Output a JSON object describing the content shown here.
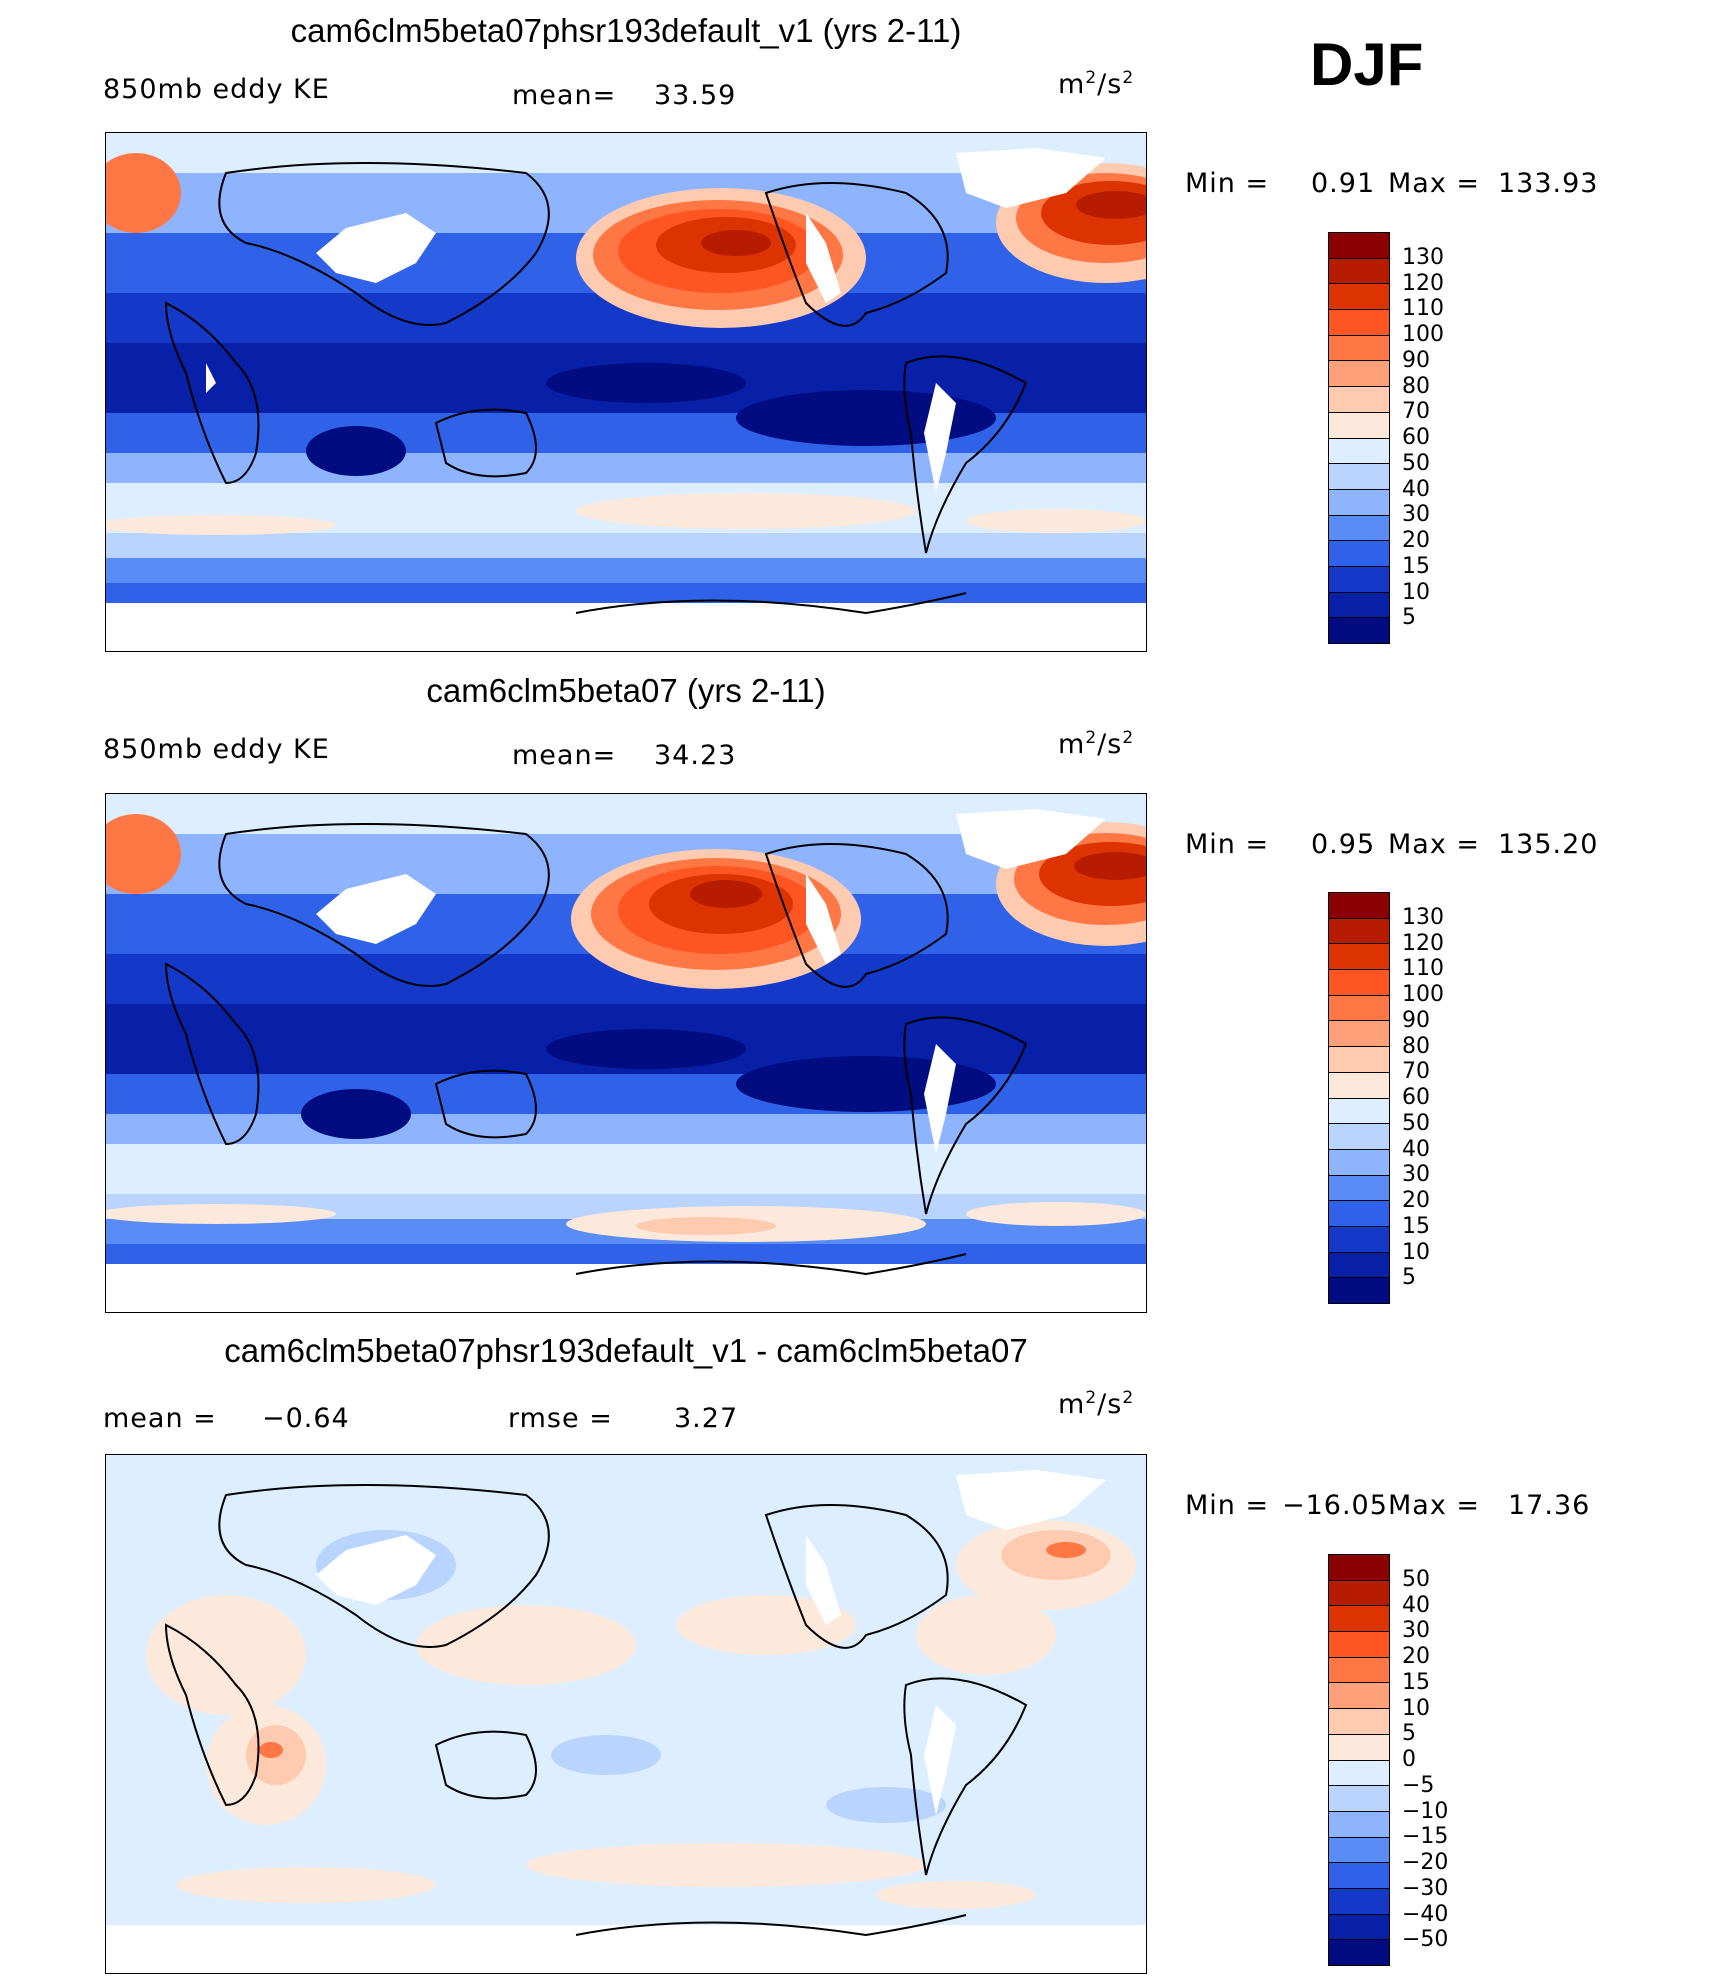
{
  "season": "DJF",
  "variable": "850mb eddy KE",
  "units": {
    "base": "m",
    "exp1": "2",
    "mid": "/s",
    "exp2": "2"
  },
  "panels": [
    {
      "title": "cam6clm5beta07phsr193default_v1 (yrs 2-11)",
      "left_label": "850mb  eddy  KE",
      "stat_label": "mean=",
      "stat_value": "33.59",
      "min_label": "Min  =",
      "min_value": "0.91",
      "max_label": "Max  =",
      "max_value": "133.93"
    },
    {
      "title": "cam6clm5beta07 (yrs 2-11)",
      "left_label": "850mb  eddy  KE",
      "stat_label": "mean=",
      "stat_value": "34.23",
      "min_label": "Min  =",
      "min_value": "0.95",
      "max_label": "Max  =",
      "max_value": "135.20"
    },
    {
      "title": "cam6clm5beta07phsr193default_v1 - cam6clm5beta07",
      "left_label": "mean  =",
      "left_value": "−0.64",
      "stat_label": "rmse  =",
      "stat_value": "3.27",
      "min_label": "Min  =",
      "min_value": "−16.05",
      "max_label": "Max  =",
      "max_value": "17.36"
    }
  ],
  "colorbar_abs": {
    "labels": [
      "130",
      "120",
      "110",
      "100",
      "90",
      "80",
      "70",
      "60",
      "50",
      "40",
      "30",
      "20",
      "15",
      "10",
      "5"
    ],
    "colors": [
      "#8b0000",
      "#b71c00",
      "#dd3300",
      "#ff5522",
      "#ff7744",
      "#ffa07a",
      "#ffcbb0",
      "#fde9dc",
      "#dceeff",
      "#b8d4ff",
      "#8fb4ff",
      "#5a8cf5",
      "#2f62e8",
      "#1438c8",
      "#0820a8",
      "#000c80"
    ]
  },
  "colorbar_diff": {
    "labels": [
      "50",
      "40",
      "30",
      "20",
      "15",
      "10",
      "5",
      "0",
      "−5",
      "−10",
      "−15",
      "−20",
      "−30",
      "−40",
      "−50"
    ],
    "colors": [
      "#8b0000",
      "#b71c00",
      "#dd3300",
      "#ff5522",
      "#ff7744",
      "#ffa07a",
      "#ffcbb0",
      "#fde9dc",
      "#dceeff",
      "#b8d4ff",
      "#8fb4ff",
      "#5a8cf5",
      "#2f62e8",
      "#1438c8",
      "#0820a8",
      "#000c80"
    ]
  }
}
